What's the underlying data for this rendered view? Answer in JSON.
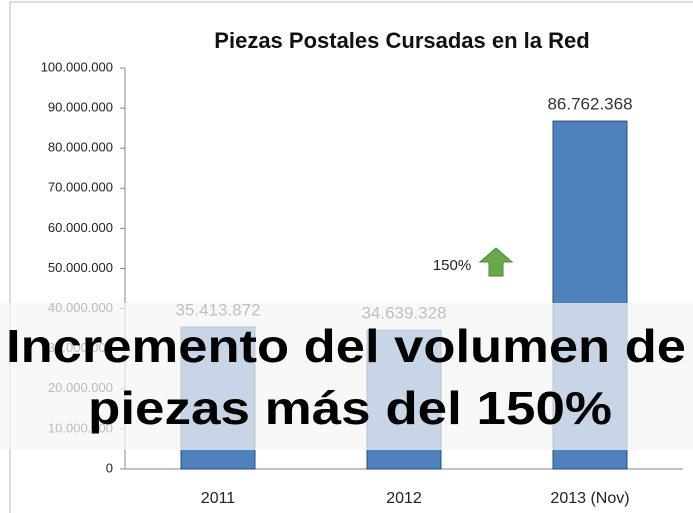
{
  "chart_data": {
    "type": "bar",
    "title": "Piezas Postales Cursadas en la Red",
    "categories": [
      "2011",
      "2012",
      "2013 (Nov)"
    ],
    "values": [
      35413872,
      34639328,
      86762368
    ],
    "value_labels": [
      "35.413.872",
      "34.639.328",
      "86.762.368"
    ],
    "color": "#4f81bd",
    "ylim": [
      0,
      100000000
    ],
    "yticks": [
      0,
      {
        "value": 10000000,
        "label": "10.000.000"
      },
      {
        "value": 20000000,
        "label": "20.000.000"
      },
      {
        "value": 30000000,
        "label": "30.000.000"
      },
      {
        "value": 40000000,
        "label": "40.000.000"
      },
      {
        "value": 50000000,
        "label": "50.000.000"
      },
      {
        "value": 60000000,
        "label": "60.000.000"
      },
      {
        "value": 70000000,
        "label": "70.000.000"
      },
      {
        "value": 80000000,
        "label": "80.000.000"
      },
      {
        "value": 90000000,
        "label": "90.000.000"
      },
      {
        "value": 100000000,
        "label": "100.000.000"
      }
    ],
    "grid": false,
    "annotation": "150%",
    "overlay_text": [
      "Incremento del volumen de",
      "piezas más del 150%"
    ]
  }
}
